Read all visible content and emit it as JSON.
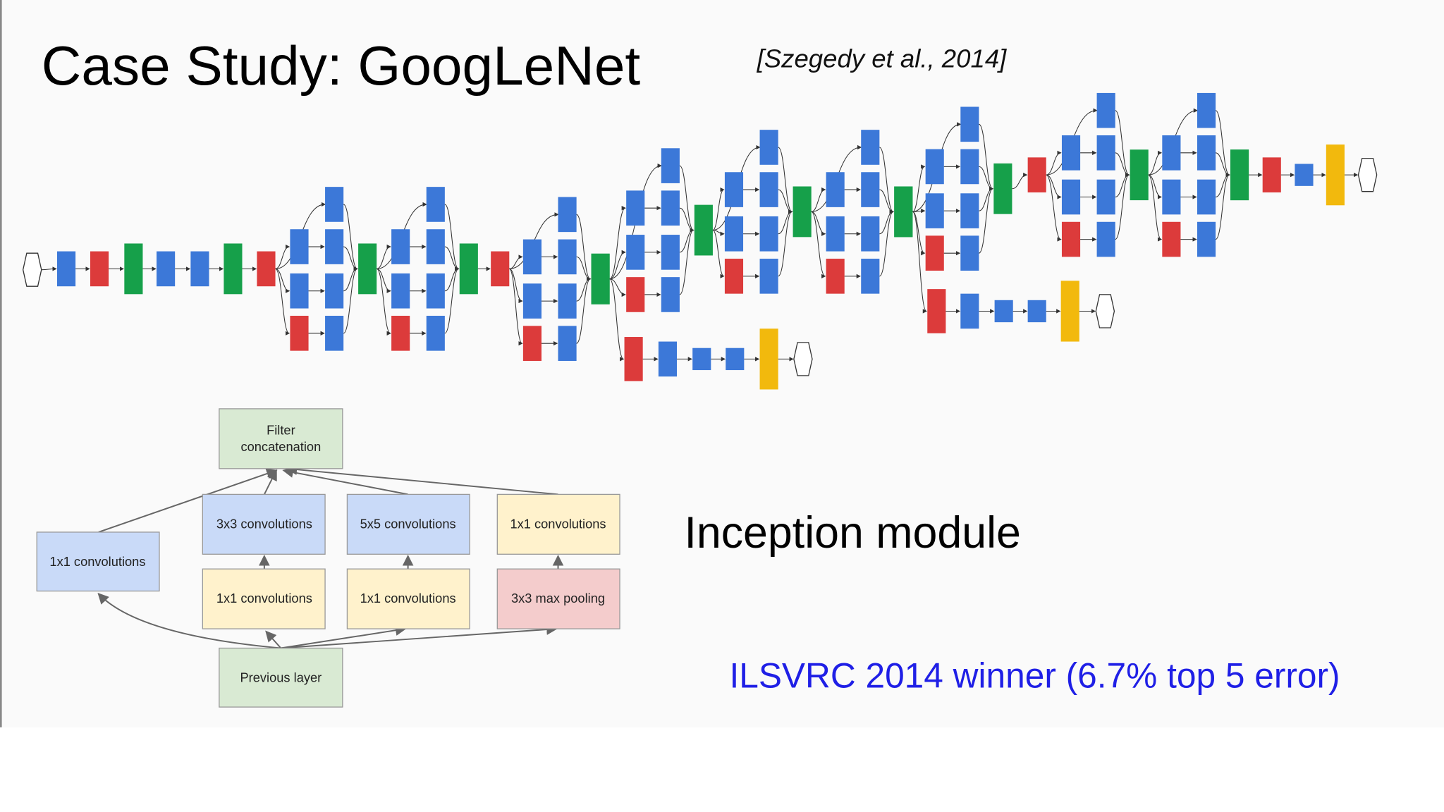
{
  "header": {
    "title": "Case Study: GoogLeNet",
    "citation": "[Szegedy et al., 2014]"
  },
  "inception_module": {
    "nodes": [
      {
        "label": "Filter concatenation"
      },
      {
        "label": "1x1 convolutions"
      },
      {
        "label": "3x3 convolutions"
      },
      {
        "label": "5x5 convolutions"
      },
      {
        "label": "1x1 convolutions"
      },
      {
        "label": "1x1 convolutions"
      },
      {
        "label": "1x1 convolutions"
      },
      {
        "label": "3x3 max pooling"
      },
      {
        "label": "Previous layer"
      }
    ],
    "caption": "Inception module"
  },
  "note": "ILSVRC 2014 winner (6.7% top 5 error)"
}
